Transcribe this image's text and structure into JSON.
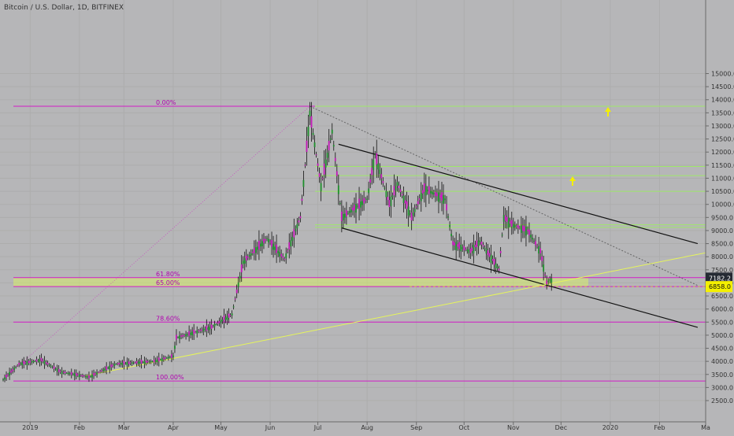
{
  "title": "Bitcoin / U.S. Dollar, 1D, BITFINEX",
  "chart_data": {
    "type": "candlestick",
    "ylim": [
      2500,
      15000
    ],
    "x_ticks": [
      "2019",
      "Feb",
      "Mar",
      "Apr",
      "May",
      "Jun",
      "Jul",
      "Aug",
      "Sep",
      "Oct",
      "Nov",
      "Dec",
      "2020",
      "Feb",
      "Ma"
    ],
    "y_ticks": [
      2500,
      3000,
      3500,
      4000,
      4500,
      5000,
      5500,
      6000,
      6500,
      7000,
      7500,
      8000,
      8500,
      9000,
      9500,
      10000,
      10500,
      11000,
      11500,
      12000,
      12500,
      13000,
      13500,
      14000,
      14500,
      15000
    ],
    "y_tick_labels": [
      "2500.0",
      "3000.0",
      "3500.0",
      "4000.0",
      "4500.0",
      "5000.0",
      "5500.0",
      "6000.0",
      "6500.0",
      "7000.0",
      "7500.0",
      "8000.0",
      "8500.0",
      "9000.0",
      "9500.0",
      "10000.0",
      "10500.0",
      "11000.0",
      "11500.0",
      "12000.0",
      "12500.0",
      "13000.0",
      "13500.0",
      "14000.0",
      "14500.0",
      "15000.0"
    ],
    "price_path": [
      {
        "date": "2018-12-15",
        "price": 3300
      },
      {
        "date": "2018-12-25",
        "price": 3900
      },
      {
        "date": "2019-01-08",
        "price": 4050
      },
      {
        "date": "2019-01-20",
        "price": 3600
      },
      {
        "date": "2019-02-07",
        "price": 3400
      },
      {
        "date": "2019-02-24",
        "price": 3900
      },
      {
        "date": "2019-03-20",
        "price": 4000
      },
      {
        "date": "2019-04-01",
        "price": 4200
      },
      {
        "date": "2019-04-03",
        "price": 4900
      },
      {
        "date": "2019-04-25",
        "price": 5300
      },
      {
        "date": "2019-05-08",
        "price": 5800
      },
      {
        "date": "2019-05-15",
        "price": 7800
      },
      {
        "date": "2019-05-30",
        "price": 8700
      },
      {
        "date": "2019-06-10",
        "price": 7900
      },
      {
        "date": "2019-06-20",
        "price": 9500
      },
      {
        "date": "2019-06-26",
        "price": 13500
      },
      {
        "date": "2019-07-03",
        "price": 10700
      },
      {
        "date": "2019-07-10",
        "price": 12800
      },
      {
        "date": "2019-07-16",
        "price": 9500
      },
      {
        "date": "2019-08-01",
        "price": 10200
      },
      {
        "date": "2019-08-06",
        "price": 11900
      },
      {
        "date": "2019-08-15",
        "price": 10000
      },
      {
        "date": "2019-08-20",
        "price": 10800
      },
      {
        "date": "2019-08-29",
        "price": 9500
      },
      {
        "date": "2019-09-06",
        "price": 10600
      },
      {
        "date": "2019-09-19",
        "price": 10200
      },
      {
        "date": "2019-09-24",
        "price": 8500
      },
      {
        "date": "2019-10-05",
        "price": 8200
      },
      {
        "date": "2019-10-11",
        "price": 8600
      },
      {
        "date": "2019-10-23",
        "price": 7500
      },
      {
        "date": "2019-10-26",
        "price": 9500
      },
      {
        "date": "2019-11-01",
        "price": 9200
      },
      {
        "date": "2019-11-10",
        "price": 9000
      },
      {
        "date": "2019-11-18",
        "price": 8200
      },
      {
        "date": "2019-11-22",
        "price": 7000
      },
      {
        "date": "2019-11-25",
        "price": 7182.2
      }
    ],
    "fib_levels": [
      {
        "label": "0.00%",
        "price": 13750
      },
      {
        "label": "61.80%",
        "price": 7200
      },
      {
        "label": "65.00%",
        "price": 6860
      },
      {
        "label": "78.60%",
        "price": 5500
      },
      {
        "label": "100.00%",
        "price": 3250
      }
    ],
    "last_price_label": "7182.2",
    "secondary_price_label": "6858.0"
  }
}
